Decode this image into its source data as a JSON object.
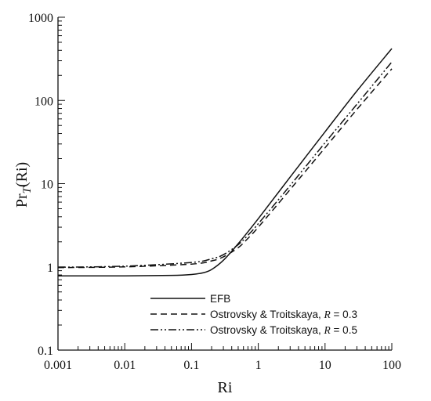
{
  "chart_data": {
    "type": "line",
    "xlabel": "Ri",
    "ylabel": "Pr",
    "ylabel_sub": "T",
    "ylabel_suffix": "(Ri)",
    "x_scale": "log",
    "y_scale": "log",
    "xlim": [
      0.001,
      100
    ],
    "ylim": [
      0.1,
      1000
    ],
    "x_ticks": [
      0.001,
      0.01,
      0.1,
      1,
      10,
      100
    ],
    "x_tick_labels": [
      "0.001",
      "0.01",
      "0.1",
      "1",
      "10",
      "100"
    ],
    "y_ticks": [
      0.1,
      1,
      10,
      100,
      1000
    ],
    "y_tick_labels": [
      "0.1",
      "1",
      "10",
      "100",
      "1000"
    ],
    "grid": false,
    "legend_position": "bottom-right",
    "series": [
      {
        "name": "EFB",
        "dash": "solid",
        "x": [
          0.001,
          0.01,
          0.05,
          0.1,
          0.15,
          0.2,
          0.3,
          0.5,
          1,
          3,
          10,
          30,
          100
        ],
        "y": [
          0.78,
          0.78,
          0.79,
          0.81,
          0.85,
          0.93,
          1.2,
          1.9,
          3.8,
          12,
          42,
          130,
          420
        ]
      },
      {
        "name": "Ostrovsky & Troitskaya, R = 0.3",
        "name_prefix": "Ostrovsky & Troitskaya, ",
        "name_var": "R",
        "name_value": " = 0.3",
        "dash": "dashed",
        "x": [
          0.001,
          0.01,
          0.1,
          0.2,
          0.3,
          0.5,
          0.7,
          1,
          3,
          10,
          30,
          100
        ],
        "y": [
          0.98,
          1.0,
          1.08,
          1.18,
          1.32,
          1.7,
          2.2,
          3.0,
          8.5,
          27,
          78,
          240
        ]
      },
      {
        "name": "Ostrovsky & Troitskaya, R = 0.5",
        "name_prefix": "Ostrovsky & Troitskaya, ",
        "name_var": "R",
        "name_value": " = 0.5",
        "dash": "dash-dot-dot",
        "x": [
          0.001,
          0.01,
          0.1,
          0.2,
          0.3,
          0.5,
          0.7,
          1,
          3,
          10,
          30,
          100
        ],
        "y": [
          0.99,
          1.02,
          1.13,
          1.25,
          1.4,
          1.85,
          2.4,
          3.3,
          9.5,
          31,
          90,
          290
        ]
      }
    ]
  }
}
